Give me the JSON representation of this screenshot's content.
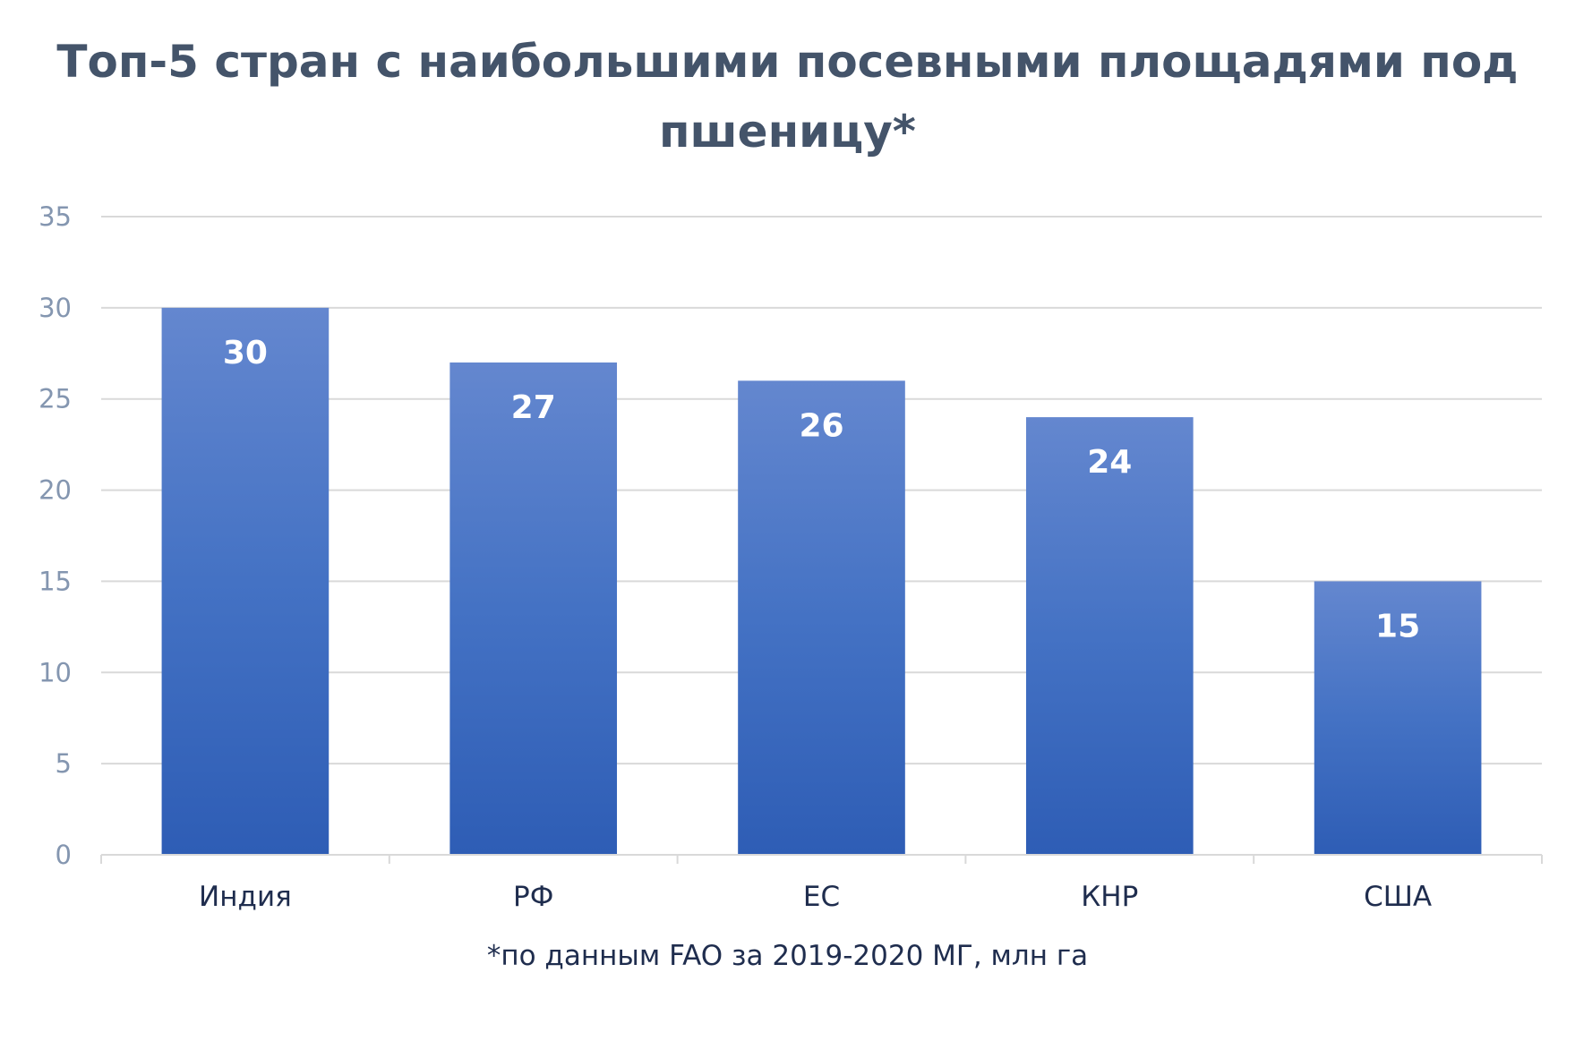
{
  "chart_data": {
    "type": "bar",
    "title": "Топ-5 стран с наибольшими посевными площадями под пшеницу*",
    "categories": [
      "Индия",
      "РФ",
      "ЕС",
      "КНР",
      "США"
    ],
    "values": [
      30,
      27,
      26,
      24,
      15
    ],
    "data_labels": [
      "30",
      "27",
      "26",
      "24",
      "15"
    ],
    "ylim": [
      0,
      35
    ],
    "yticks": [
      "0",
      "5",
      "10",
      "15",
      "20",
      "25",
      "30",
      "35"
    ],
    "grid": true,
    "legend": "none",
    "footnote": "*по данным FAO за 2019-2020 МГ, млн га",
    "colors": {
      "bar_top": "#6487cf",
      "bar_mid": "#4472c4",
      "bar_bottom": "#2e5db5",
      "grid": "#d9d9d9",
      "title": "#44546a",
      "tick": "#8496b0",
      "category": "#1f2d4e"
    }
  }
}
